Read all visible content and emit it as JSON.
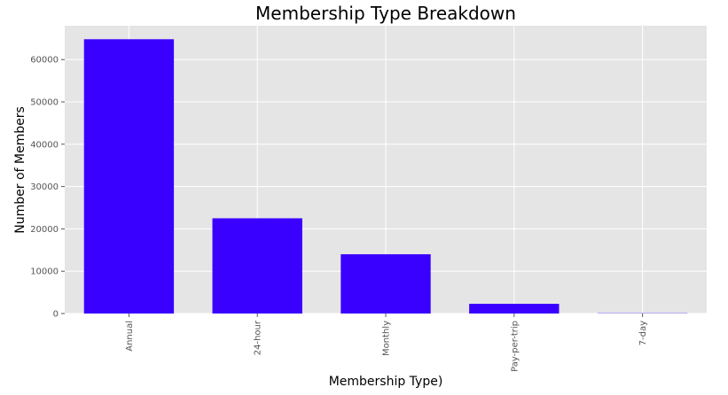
{
  "chart_data": {
    "type": "bar",
    "title": "Membership Type Breakdown",
    "xlabel": "Membership Type)",
    "ylabel": "Number of Members",
    "categories": [
      "Annual",
      "24-hour",
      "Monthly",
      "Pay-per-trip",
      "7-day"
    ],
    "values": [
      64800,
      22500,
      14000,
      2300,
      60
    ],
    "yticks": [
      0,
      10000,
      20000,
      30000,
      40000,
      50000,
      60000
    ],
    "ylim": [
      0,
      68000
    ],
    "grid": true,
    "colors": {
      "bar": "#3a00ff",
      "plot_bg": "#e5e5e5",
      "grid": "#ffffff"
    }
  }
}
